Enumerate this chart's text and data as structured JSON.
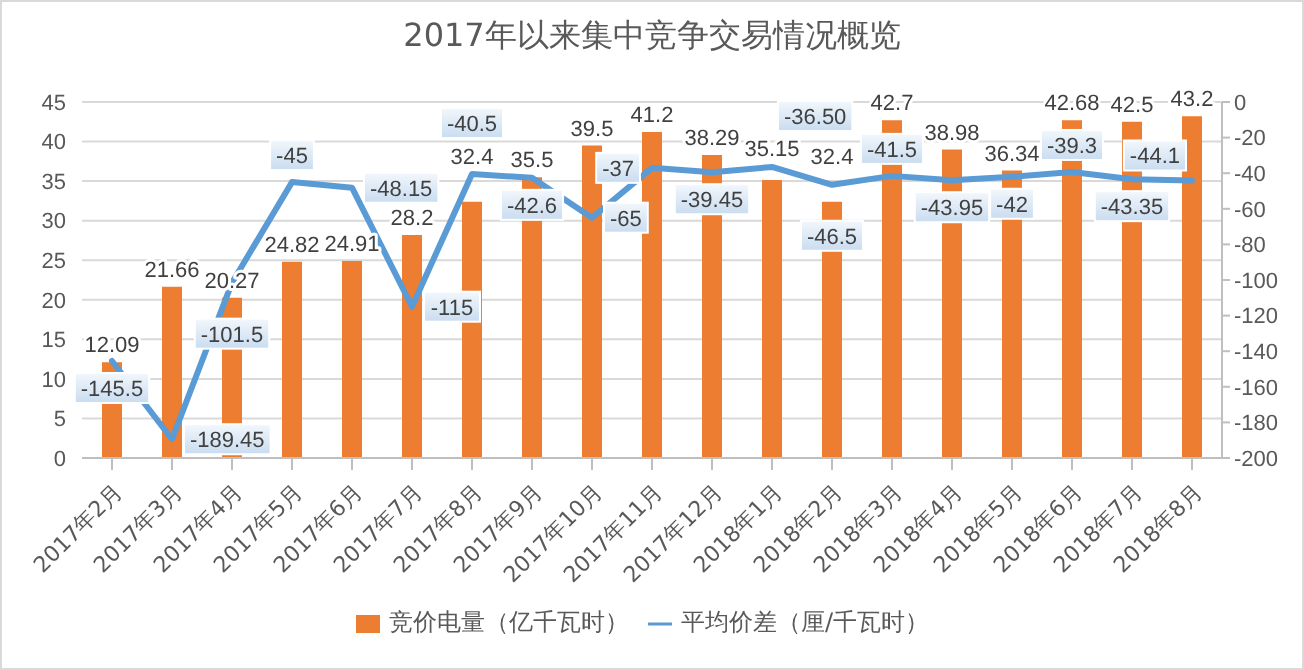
{
  "chart_data": {
    "type": "bar",
    "title": "2017年以来集中竞争交易情况概览",
    "categories": [
      "2017年2月",
      "2017年3月",
      "2017年4月",
      "2017年5月",
      "2017年6月",
      "2017年7月",
      "2017年8月",
      "2017年9月",
      "2017年10月",
      "2017年11月",
      "2017年12月",
      "2018年1月",
      "2018年2月",
      "2018年3月",
      "2018年4月",
      "2018年5月",
      "2018年6月",
      "2018年7月",
      "2018年8月"
    ],
    "series": [
      {
        "name": "竞价电量（亿千瓦时）",
        "color": "#ed7d31",
        "values": [
          12.09,
          21.66,
          20.27,
          24.82,
          24.91,
          28.2,
          32.4,
          35.5,
          39.5,
          41.2,
          38.29,
          35.15,
          32.4,
          42.7,
          38.98,
          36.34,
          42.68,
          42.5,
          43.2
        ],
        "value_labels": [
          "12.09",
          "21.66",
          "20.27",
          "24.82",
          "24.91",
          "28.2",
          "32.4",
          "35.5",
          "39.5",
          "41.2",
          "38.29",
          "35.15",
          "32.4",
          "42.7",
          "38.98",
          "36.34",
          "42.68",
          "42.5",
          "43.2"
        ]
      },
      {
        "name": "平均价差（厘/千瓦时）",
        "type": "line",
        "axis": "y2",
        "color": "#5b9bd5",
        "values": [
          -145.5,
          -189.45,
          -101.5,
          -45,
          -48.15,
          -115,
          -40.5,
          -42.6,
          -65,
          -37,
          -39.45,
          -36.5,
          -46.5,
          -41.5,
          -43.95,
          -42,
          -39.3,
          -43.35,
          -44.1
        ],
        "value_labels": [
          "-145.5",
          "-189.45",
          "-101.5",
          "-45",
          "-48.15",
          "-115",
          "-40.5",
          "-42.6",
          "-65",
          "-37",
          "-39.45",
          "-36.50",
          "-46.5",
          "-41.5",
          "-43.95",
          "-42",
          "-39.3",
          "-43.35",
          "-44.1"
        ]
      }
    ],
    "ylim": [
      0,
      45
    ],
    "yticks": [
      0,
      5,
      10,
      15,
      20,
      25,
      30,
      35,
      40,
      45
    ],
    "y2lim": [
      -200,
      0
    ],
    "y2ticks": [
      -200,
      -180,
      -160,
      -140,
      -120,
      -100,
      -80,
      -60,
      -40,
      -20,
      0
    ],
    "grid": "y",
    "legend": "bottom",
    "marker": "none"
  }
}
